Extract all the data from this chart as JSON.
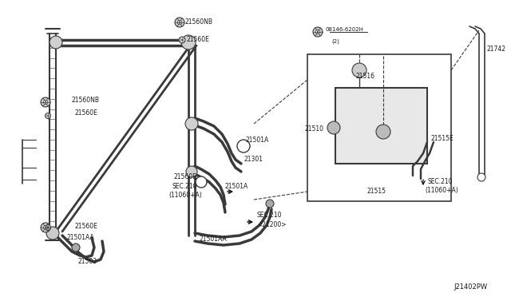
{
  "bg_color": "#ffffff",
  "line_color": "#3a3a3a",
  "text_color": "#1a1a1a",
  "watermark": "J21402PW",
  "figsize": [
    6.4,
    3.72
  ],
  "dpi": 100,
  "xlim": [
    0,
    640
  ],
  "ylim": [
    0,
    372
  ]
}
